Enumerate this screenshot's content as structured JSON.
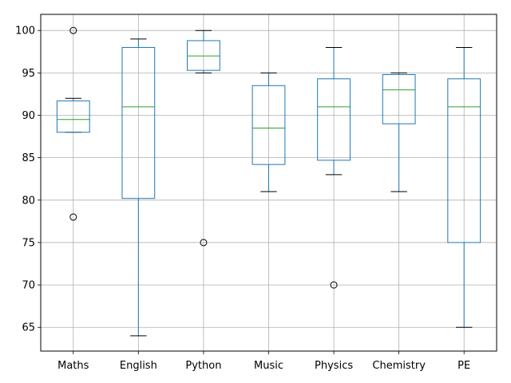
{
  "chart_data": {
    "type": "box",
    "title": "",
    "xlabel": "",
    "ylabel": "",
    "ylim": [
      62.2,
      101.9
    ],
    "yticks": [
      65,
      70,
      75,
      80,
      85,
      90,
      95,
      100
    ],
    "grid": true,
    "colors": {
      "box": "#1f77b4",
      "median": "#2ca02c",
      "whisker": "#000000",
      "flier": "#000000",
      "grid": "#b0b0b0"
    },
    "categories": [
      "Maths",
      "English",
      "Python",
      "Music",
      "Physics",
      "Chemistry",
      "PE"
    ],
    "boxes": [
      {
        "label": "Maths",
        "whislo": 88,
        "q1": 88,
        "med": 89.5,
        "q3": 91.7,
        "whishi": 92,
        "fliers": [
          100,
          78
        ]
      },
      {
        "label": "English",
        "whislo": 64,
        "q1": 80.2,
        "med": 91,
        "q3": 98,
        "whishi": 99,
        "fliers": []
      },
      {
        "label": "Python",
        "whislo": 95,
        "q1": 95.3,
        "med": 97,
        "q3": 98.8,
        "whishi": 100,
        "fliers": [
          75
        ]
      },
      {
        "label": "Music",
        "whislo": 81,
        "q1": 84.2,
        "med": 88.5,
        "q3": 93.5,
        "whishi": 95,
        "fliers": []
      },
      {
        "label": "Physics",
        "whislo": 83,
        "q1": 84.7,
        "med": 91,
        "q3": 94.3,
        "whishi": 98,
        "fliers": [
          70
        ]
      },
      {
        "label": "Chemistry",
        "whislo": 81,
        "q1": 89,
        "med": 93,
        "q3": 94.8,
        "whishi": 95,
        "fliers": []
      },
      {
        "label": "PE",
        "whislo": 65,
        "q1": 75,
        "med": 91,
        "q3": 94.3,
        "whishi": 98,
        "fliers": []
      }
    ]
  }
}
